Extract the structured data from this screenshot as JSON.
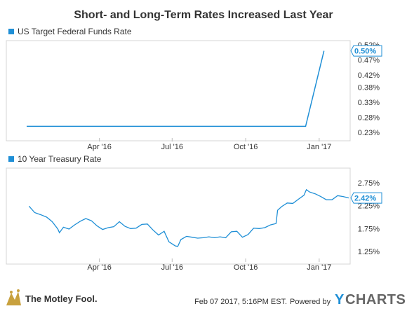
{
  "title": "Short- and Long-Term Rates Increased Last Year",
  "colors": {
    "series": "#1f8fd6",
    "frame": "#d4d4d4",
    "text": "#333333",
    "fool_gold": "#c8a13e",
    "ycharts_gray": "#666666"
  },
  "chart_data": [
    {
      "type": "line",
      "legend": "US Target Federal Funds Rate",
      "current_value_label": "0.50%",
      "current_value": 0.5,
      "x_ticks": [
        "Apr '16",
        "Jul '16",
        "Oct '16",
        "Jan '17"
      ],
      "y_ticks": [
        "0.23%",
        "0.28%",
        "0.33%",
        "0.38%",
        "0.42%",
        "0.47%",
        "0.52%"
      ],
      "ylim": [
        0.23,
        0.52
      ],
      "grid": false,
      "x": [
        "2016-01-01",
        "2016-12-14",
        "2016-12-15",
        "2017-01-07"
      ],
      "y": [
        0.25,
        0.25,
        0.25,
        0.5
      ],
      "x_range": [
        "2016-01-01",
        "2017-02-07"
      ]
    },
    {
      "type": "line",
      "legend": "10 Year Treasury Rate",
      "current_value_label": "2.42%",
      "current_value": 2.42,
      "x_ticks": [
        "Apr '16",
        "Jul '16",
        "Oct '16",
        "Jan '17"
      ],
      "y_ticks": [
        "1.25%",
        "1.75%",
        "2.25%",
        "2.75%"
      ],
      "ylim": [
        1.05,
        2.95
      ],
      "grid": false,
      "x_range": [
        "2016-01-01",
        "2017-02-07"
      ],
      "x": [
        "2016-01-04",
        "2016-01-11",
        "2016-01-19",
        "2016-01-26",
        "2016-02-02",
        "2016-02-09",
        "2016-02-11",
        "2016-02-16",
        "2016-02-23",
        "2016-03-01",
        "2016-03-08",
        "2016-03-15",
        "2016-03-22",
        "2016-03-29",
        "2016-04-05",
        "2016-04-12",
        "2016-04-19",
        "2016-04-26",
        "2016-05-03",
        "2016-05-10",
        "2016-05-17",
        "2016-05-24",
        "2016-05-31",
        "2016-06-07",
        "2016-06-14",
        "2016-06-21",
        "2016-06-27",
        "2016-07-05",
        "2016-07-08",
        "2016-07-12",
        "2016-07-19",
        "2016-07-26",
        "2016-08-02",
        "2016-08-09",
        "2016-08-16",
        "2016-08-23",
        "2016-08-30",
        "2016-09-06",
        "2016-09-13",
        "2016-09-20",
        "2016-09-27",
        "2016-10-04",
        "2016-10-11",
        "2016-10-18",
        "2016-10-25",
        "2016-11-01",
        "2016-11-08",
        "2016-11-10",
        "2016-11-15",
        "2016-11-22",
        "2016-11-29",
        "2016-12-06",
        "2016-12-13",
        "2016-12-16",
        "2016-12-20",
        "2016-12-27",
        "2017-01-03",
        "2017-01-10",
        "2017-01-17",
        "2017-01-24",
        "2017-01-31",
        "2017-02-07"
      ],
      "y": [
        2.24,
        2.1,
        2.05,
        2.0,
        1.9,
        1.74,
        1.66,
        1.78,
        1.74,
        1.83,
        1.91,
        1.97,
        1.92,
        1.81,
        1.73,
        1.77,
        1.79,
        1.9,
        1.8,
        1.75,
        1.76,
        1.84,
        1.85,
        1.72,
        1.61,
        1.69,
        1.46,
        1.37,
        1.36,
        1.51,
        1.58,
        1.56,
        1.54,
        1.55,
        1.57,
        1.55,
        1.57,
        1.55,
        1.68,
        1.69,
        1.56,
        1.62,
        1.76,
        1.75,
        1.77,
        1.83,
        1.86,
        2.15,
        2.23,
        2.31,
        2.3,
        2.39,
        2.48,
        2.6,
        2.55,
        2.51,
        2.45,
        2.38,
        2.38,
        2.47,
        2.45,
        2.42
      ]
    }
  ],
  "footer": {
    "brand": "The Motley Fool.",
    "timestamp": "Feb 07 2017, 5:16PM EST.",
    "powered_by": "Powered by",
    "ycharts_y": "Y",
    "ycharts_rest": "CHARTS"
  }
}
